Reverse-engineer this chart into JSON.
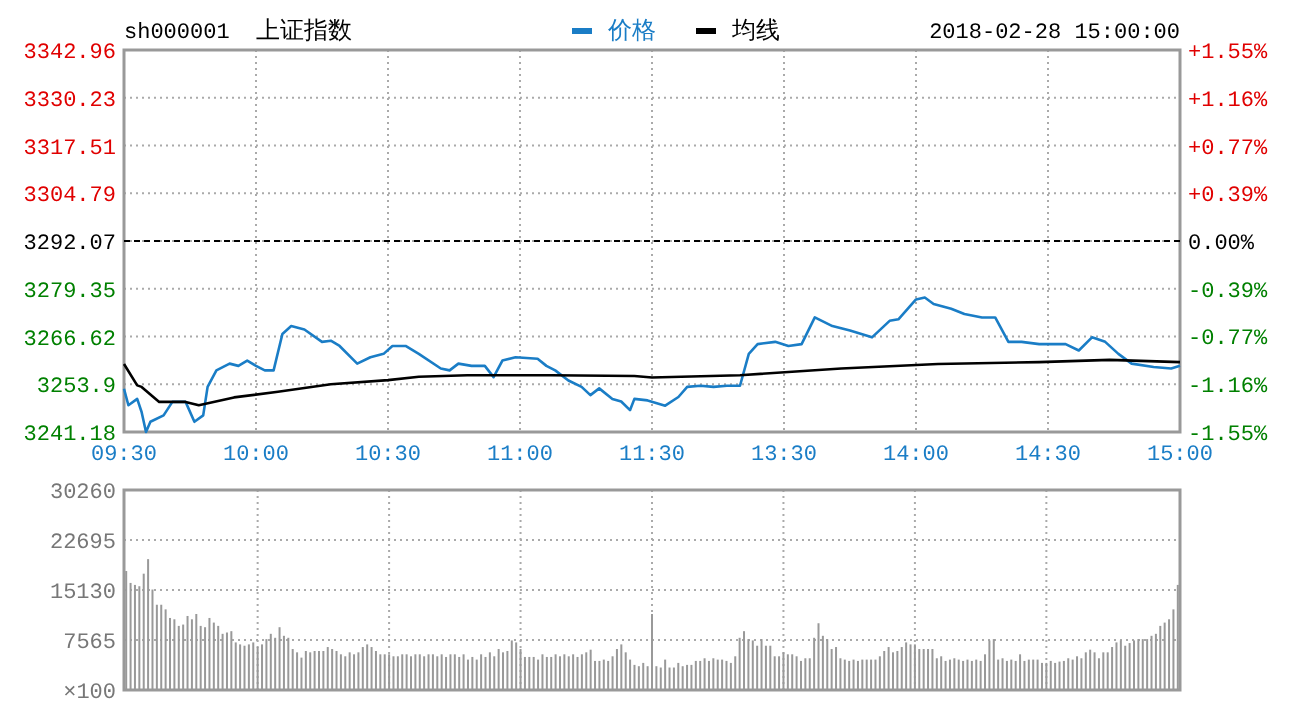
{
  "chart_data": [
    {
      "type": "line",
      "title": "上证指数",
      "annotations": [
        "sh000001",
        "2018-02-28 15:00:00"
      ],
      "categories": [
        "09:30",
        null,
        null,
        null,
        null,
        null,
        null,
        null,
        null,
        null,
        null,
        null,
        null,
        null,
        null,
        null,
        null,
        null,
        null,
        null,
        null,
        null,
        null,
        null,
        null,
        null,
        null,
        null,
        null,
        null,
        "10:00",
        null,
        null,
        null,
        null,
        null,
        null,
        null,
        null,
        null,
        null,
        null,
        null,
        null,
        null,
        null,
        null,
        null,
        null,
        null,
        null,
        null,
        null,
        null,
        null,
        null,
        null,
        null,
        null,
        null,
        "10:30",
        null,
        null,
        null,
        null,
        null,
        null,
        null,
        null,
        null,
        null,
        null,
        null,
        null,
        null,
        null,
        null,
        null,
        null,
        null,
        null,
        null,
        null,
        null,
        null,
        null,
        null,
        null,
        null,
        null,
        "11:00",
        null,
        null,
        null,
        null,
        null,
        null,
        null,
        null,
        null,
        null,
        null,
        null,
        null,
        null,
        null,
        null,
        null,
        null,
        null,
        null,
        null,
        null,
        null,
        null,
        null,
        null,
        null,
        null,
        null,
        "11:30",
        null,
        null,
        null,
        null,
        null,
        null,
        null,
        null,
        null,
        null,
        null,
        null,
        null,
        null,
        null,
        null,
        null,
        null,
        null,
        null,
        null,
        null,
        null,
        null,
        null,
        null,
        null,
        null,
        null,
        "13:30",
        null,
        null,
        null,
        null,
        null,
        null,
        null,
        null,
        null,
        null,
        null,
        null,
        null,
        null,
        null,
        null,
        null,
        null,
        null,
        null,
        null,
        null,
        null,
        null,
        null,
        null,
        null,
        null,
        null,
        "14:00",
        null,
        null,
        null,
        null,
        null,
        null,
        null,
        null,
        null,
        null,
        null,
        null,
        null,
        null,
        null,
        null,
        null,
        null,
        null,
        null,
        null,
        null,
        null,
        null,
        null,
        null,
        null,
        null,
        null,
        "14:30",
        null,
        null,
        null,
        null,
        null,
        null,
        null,
        null,
        null,
        null,
        null,
        null,
        null,
        null,
        null,
        null,
        null,
        null,
        null,
        null,
        null,
        null,
        null,
        null,
        null,
        null,
        null,
        null,
        null,
        "15:00"
      ],
      "ylim": [
        3241.18,
        3342.96
      ],
      "yticks": [
        3241.18,
        3253.9,
        3266.62,
        3279.35,
        3292.07,
        3304.79,
        3317.51,
        3330.23,
        3342.96
      ],
      "y2lim": [
        -1.55,
        1.55
      ],
      "y2ticks": [
        {
          "value": -1.55,
          "label": "-1.55%"
        },
        {
          "value": -1.16,
          "label": "-1.16%"
        },
        {
          "value": -0.77,
          "label": "-0.77%"
        },
        {
          "value": -0.39,
          "label": "-0.39%"
        },
        {
          "value": 0,
          "label": "0.00%"
        },
        {
          "value": 0.39,
          "label": "+0.39%"
        },
        {
          "value": 0.77,
          "label": "+0.77%"
        },
        {
          "value": 1.16,
          "label": "+1.16%"
        },
        {
          "value": 1.55,
          "label": "+1.55%"
        }
      ],
      "ref_lines": [
        {
          "axis": "y",
          "value": 3292.07,
          "color": "#000000",
          "line_style": "dashed"
        }
      ],
      "grid": true,
      "legend": "top",
      "line_style": "solid",
      "series": [
        {
          "name": "价格",
          "color": "#1a7dc6",
          "values": [
            3252.7,
            3248.3,
            null,
            3250.0,
            3246.5,
            3241.2,
            3243.9,
            null,
            null,
            3245.6,
            null,
            3249.2,
            null,
            null,
            3249.2,
            null,
            3243.9,
            null,
            3245.6,
            3253.2,
            null,
            3257.6,
            null,
            null,
            3259.4,
            null,
            3258.8,
            null,
            3260.2,
            null,
            3258.8,
            null,
            3257.6,
            null,
            3257.6,
            null,
            3267.3,
            null,
            3269.4,
            null,
            null,
            3268.5,
            null,
            null,
            null,
            3265.2,
            null,
            3265.5,
            null,
            3264.1,
            null,
            null,
            null,
            3259.4,
            null,
            null,
            3261.1,
            null,
            null,
            3262.0,
            null,
            3264.1,
            null,
            null,
            3264.1,
            null,
            null,
            3262.0,
            null,
            null,
            null,
            null,
            3258.1,
            null,
            3257.6,
            null,
            3259.4,
            null,
            null,
            3258.8,
            null,
            null,
            3258.8,
            null,
            3255.8,
            null,
            3260.2,
            null,
            null,
            3261.1,
            null,
            null,
            null,
            null,
            3260.7,
            null,
            3258.8,
            null,
            3257.6,
            null,
            null,
            3254.9,
            null,
            null,
            3253.2,
            null,
            3251.0,
            null,
            3252.8,
            null,
            null,
            3250.0,
            null,
            3249.3,
            null,
            3247.0,
            3250.0,
            null,
            null,
            3249.6,
            null,
            null,
            null,
            3248.2,
            null,
            null,
            3250.5,
            null,
            3253.2,
            null,
            null,
            3253.5,
            null,
            null,
            3253.2,
            null,
            null,
            3253.5,
            null,
            null,
            3253.5,
            null,
            3262.0,
            null,
            3264.6,
            null,
            null,
            null,
            3265.2,
            null,
            null,
            3264.1,
            null,
            null,
            3264.6,
            null,
            null,
            3271.7,
            null,
            null,
            null,
            3269.4,
            null,
            null,
            null,
            3268.2,
            null,
            null,
            null,
            null,
            3266.4,
            null,
            null,
            null,
            3270.8,
            null,
            3271.2,
            null,
            null,
            null,
            3276.5,
            null,
            3277.0,
            null,
            3275.3,
            null,
            null,
            null,
            3274.0,
            null,
            null,
            3272.6,
            null,
            null,
            null,
            3271.7,
            null,
            null,
            3271.7,
            null,
            null,
            3265.2,
            null,
            null,
            3265.2,
            null,
            null,
            null,
            3264.6,
            null,
            null,
            null,
            null,
            null,
            3264.6,
            null,
            null,
            3262.9,
            null,
            null,
            3266.4,
            null,
            null,
            3265.2,
            null,
            null,
            3262.0,
            null,
            null,
            3259.4,
            null,
            null,
            null,
            null,
            3258.5,
            null,
            null,
            null,
            3258.1,
            null,
            3258.8
          ]
        },
        {
          "name": "均线",
          "color": "#000000",
          "values": [
            3259.3,
            null,
            null,
            3253.6,
            3253.2,
            null,
            null,
            null,
            3249.2,
            null,
            null,
            null,
            null,
            null,
            3249.2,
            null,
            null,
            3248.3,
            null,
            null,
            null,
            null,
            null,
            null,
            null,
            3250.4,
            null,
            null,
            null,
            null,
            null,
            null,
            null,
            null,
            null,
            3251.9,
            null,
            null,
            null,
            null,
            null,
            null,
            null,
            null,
            null,
            null,
            null,
            3253.9,
            null,
            null,
            null,
            null,
            null,
            null,
            null,
            null,
            null,
            null,
            null,
            null,
            3255.0,
            null,
            null,
            null,
            null,
            null,
            null,
            3255.9,
            null,
            null,
            null,
            null,
            null,
            null,
            null,
            null,
            null,
            null,
            3256.3,
            null,
            null,
            null,
            null,
            null,
            null,
            null,
            null,
            null,
            null,
            null,
            null,
            null,
            null,
            null,
            null,
            null,
            null,
            3256.3,
            null,
            null,
            null,
            null,
            null,
            null,
            null,
            null,
            null,
            null,
            null,
            null,
            null,
            null,
            null,
            null,
            null,
            null,
            3256.1,
            null,
            null,
            null,
            3255.7,
            null,
            null,
            null,
            null,
            null,
            null,
            null,
            null,
            null,
            null,
            null,
            null,
            null,
            null,
            null,
            null,
            null,
            null,
            null,
            3256.3,
            null,
            null,
            null,
            null,
            null,
            null,
            null,
            null,
            null,
            null,
            null,
            null,
            null,
            null,
            null,
            null,
            null,
            null,
            null,
            null,
            null,
            null,
            3258.1,
            null,
            null,
            null,
            null,
            null,
            null,
            null,
            null,
            null,
            null,
            null,
            null,
            null,
            null,
            null,
            null,
            null,
            null,
            null,
            null,
            null,
            3259.3,
            null,
            null,
            null,
            null,
            null,
            null,
            null,
            null,
            null,
            null,
            null,
            null,
            null,
            null,
            null,
            null,
            null,
            null,
            null,
            null,
            null,
            null,
            3259.8,
            null,
            null,
            null,
            null,
            null,
            null,
            null,
            null,
            null,
            null,
            null,
            null,
            null,
            null,
            null,
            3260.4,
            null,
            null,
            null,
            null,
            null,
            null,
            null,
            null,
            null,
            null,
            null,
            null,
            null,
            null,
            null,
            3259.8
          ]
        }
      ]
    },
    {
      "type": "bar",
      "color": "#999999",
      "ylabel": "×100",
      "categories": [
        null,
        null,
        null,
        null,
        null,
        null,
        null,
        null,
        null,
        null,
        null,
        null,
        null,
        null,
        null,
        null,
        null,
        null,
        null,
        null,
        null,
        null,
        null,
        null,
        null,
        null,
        null,
        null,
        null,
        null,
        null,
        null,
        null,
        null,
        null,
        null,
        null,
        null,
        null,
        null,
        null,
        null,
        null,
        null,
        null,
        null,
        null,
        null,
        null,
        null,
        null,
        null,
        null,
        null,
        null,
        null,
        null,
        null,
        null,
        null,
        null,
        null,
        null,
        null,
        null,
        null,
        null,
        null,
        null,
        null,
        null,
        null,
        null,
        null,
        null,
        null,
        null,
        null,
        null,
        null,
        null,
        null,
        null,
        null,
        null,
        null,
        null,
        null,
        null,
        null,
        null,
        null,
        null,
        null,
        null,
        null,
        null,
        null,
        null,
        null,
        null,
        null,
        null,
        null,
        null,
        null,
        null,
        null,
        null,
        null,
        null,
        null,
        null,
        null,
        null,
        null,
        null,
        null,
        null,
        null,
        null,
        null,
        null,
        null,
        null,
        null,
        null,
        null,
        null,
        null,
        null,
        null,
        null,
        null,
        null,
        null,
        null,
        null,
        null,
        null,
        null,
        null,
        null,
        null,
        null,
        null,
        null,
        null,
        null,
        null,
        null,
        null,
        null,
        null,
        null,
        null,
        null,
        null,
        null,
        null,
        null,
        null,
        null,
        null,
        null,
        null,
        null,
        null,
        null,
        null,
        null,
        null,
        null,
        null,
        null,
        null,
        null,
        null,
        null,
        null,
        null,
        null,
        null,
        null,
        null,
        null,
        null,
        null,
        null,
        null,
        null,
        null,
        null,
        null,
        null,
        null,
        null,
        null,
        null,
        null,
        null,
        null,
        null,
        null,
        null,
        null,
        null,
        null,
        null,
        null,
        null,
        null,
        null,
        null,
        null,
        null,
        null,
        null,
        null,
        null,
        null,
        null,
        null,
        null,
        null,
        null,
        null,
        null,
        null,
        null,
        null,
        null,
        null,
        null,
        null,
        null,
        null,
        null,
        null,
        null,
        null
      ],
      "ylim": [
        0,
        30260
      ],
      "yticks": [
        7565,
        15130,
        22695,
        30260
      ],
      "grid": true,
      "tick_labels": "y",
      "values": [
        18000,
        16200,
        15900,
        15700,
        17600,
        19800,
        15200,
        12900,
        12900,
        12200,
        10900,
        10700,
        9700,
        9900,
        11200,
        10700,
        11500,
        9700,
        9500,
        10900,
        10200,
        9700,
        8500,
        8700,
        8900,
        7200,
        6900,
        6700,
        6900,
        7200,
        6500,
        6900,
        7700,
        8500,
        7900,
        9500,
        8200,
        7900,
        6200,
        5700,
        4900,
        5900,
        5700,
        5900,
        5900,
        5900,
        6500,
        6200,
        5900,
        5400,
        5100,
        5700,
        5400,
        5700,
        6500,
        6900,
        6500,
        5900,
        5400,
        5400,
        5400,
        5100,
        5100,
        5400,
        5400,
        5100,
        5400,
        5400,
        5100,
        5400,
        5400,
        5100,
        5400,
        5000,
        5400,
        5400,
        5000,
        5400,
        4600,
        5000,
        4600,
        5400,
        5000,
        5700,
        5100,
        6200,
        5700,
        5900,
        7500,
        7200,
        6200,
        5000,
        5000,
        5000,
        4600,
        5400,
        5000,
        5000,
        5400,
        5100,
        5400,
        5100,
        5400,
        5000,
        5400,
        5700,
        6100,
        4400,
        4400,
        4600,
        4400,
        5100,
        6200,
        6900,
        5700,
        4600,
        3800,
        3600,
        4100,
        3600,
        11500,
        3600,
        3400,
        4600,
        3400,
        3400,
        4100,
        3600,
        3800,
        3800,
        4400,
        4400,
        4800,
        4400,
        4800,
        4600,
        4600,
        4400,
        4100,
        5100,
        7900,
        8900,
        7700,
        7500,
        6700,
        7700,
        6700,
        6700,
        5100,
        5100,
        5700,
        5400,
        5400,
        5100,
        4400,
        4800,
        4800,
        7900,
        10100,
        8200,
        7700,
        6200,
        6500,
        4800,
        4600,
        4400,
        4600,
        4400,
        4600,
        4600,
        4600,
        4600,
        5100,
        5900,
        6500,
        5700,
        5900,
        6500,
        7200,
        6900,
        6900,
        6200,
        6200,
        6200,
        6200,
        4800,
        5100,
        4400,
        4600,
        4800,
        4600,
        4400,
        4600,
        4400,
        4600,
        4400,
        5400,
        7500,
        7700,
        4600,
        4800,
        4400,
        4600,
        4400,
        5400,
        4400,
        4600,
        4600,
        4600,
        4100,
        4100,
        4400,
        4100,
        4300,
        4400,
        4800,
        4600,
        5100,
        4800,
        5700,
        6100,
        5700,
        4800,
        5700,
        5700,
        6500,
        7200,
        7500,
        6700,
        7100,
        7500,
        7700,
        7700,
        7700,
        8200,
        8500,
        9700,
        10200,
        10700,
        12200,
        15900
      ]
    }
  ]
}
